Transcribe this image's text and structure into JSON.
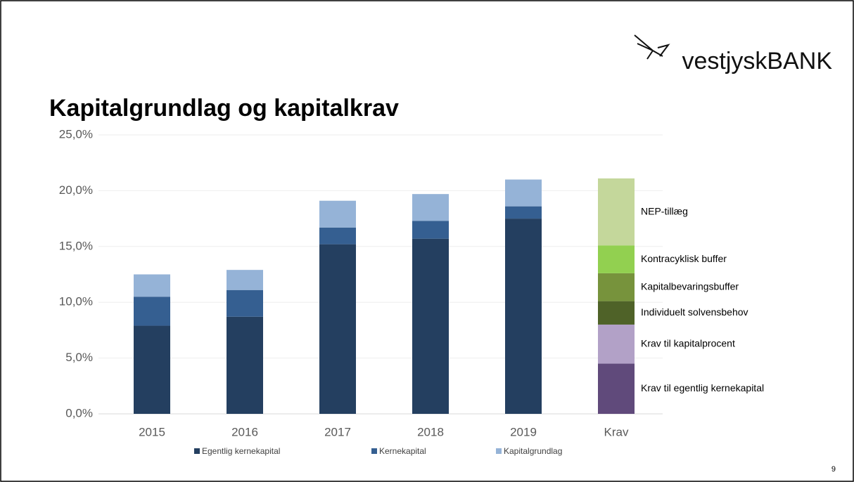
{
  "logo": "vestjyskBANK",
  "page_number": "9",
  "chart_data": {
    "type": "stacked_bar",
    "title": "Kapitalgrundlag og kapitalkrav",
    "categories": [
      "2015",
      "2016",
      "2017",
      "2018",
      "2019",
      "Krav"
    ],
    "series": [
      {
        "name": "Egentlig kernekapital",
        "color": "#243f60",
        "values": [
          7.9,
          8.7,
          15.2,
          15.7,
          17.5,
          null
        ]
      },
      {
        "name": "Kernekapital",
        "color": "#355f91",
        "values": [
          2.6,
          2.4,
          1.5,
          1.6,
          1.1,
          null
        ]
      },
      {
        "name": "Kapitalgrundlag",
        "color": "#95b3d7",
        "values": [
          2.0,
          1.8,
          2.4,
          2.4,
          2.4,
          null
        ]
      }
    ],
    "requirements": [
      {
        "name": "Krav til egentlig kernekapital",
        "color": "#604a7b",
        "value": 4.5
      },
      {
        "name": "Krav til kapitalprocent",
        "color": "#b2a1c7",
        "value": 3.5
      },
      {
        "name": "Individuelt solvensbehov",
        "color": "#4f6228",
        "value": 2.1
      },
      {
        "name": "Kapitalbevaringsbuffer",
        "color": "#77933c",
        "value": 2.5
      },
      {
        "name": "Kontracyklisk buffer",
        "color": "#92d050",
        "value": 2.5
      },
      {
        "name": "NEP-tillæg",
        "color": "#c4d79b",
        "value": 6.0
      }
    ],
    "ylim": [
      0,
      25
    ],
    "yticks": [
      {
        "value": 0,
        "label": "0,0%"
      },
      {
        "value": 5,
        "label": "5,0%"
      },
      {
        "value": 10,
        "label": "10,0%"
      },
      {
        "value": 15,
        "label": "15,0%"
      },
      {
        "value": 20,
        "label": "20,0%"
      },
      {
        "value": 25,
        "label": "25,0%"
      }
    ],
    "grid": true,
    "legend": "bottom"
  }
}
